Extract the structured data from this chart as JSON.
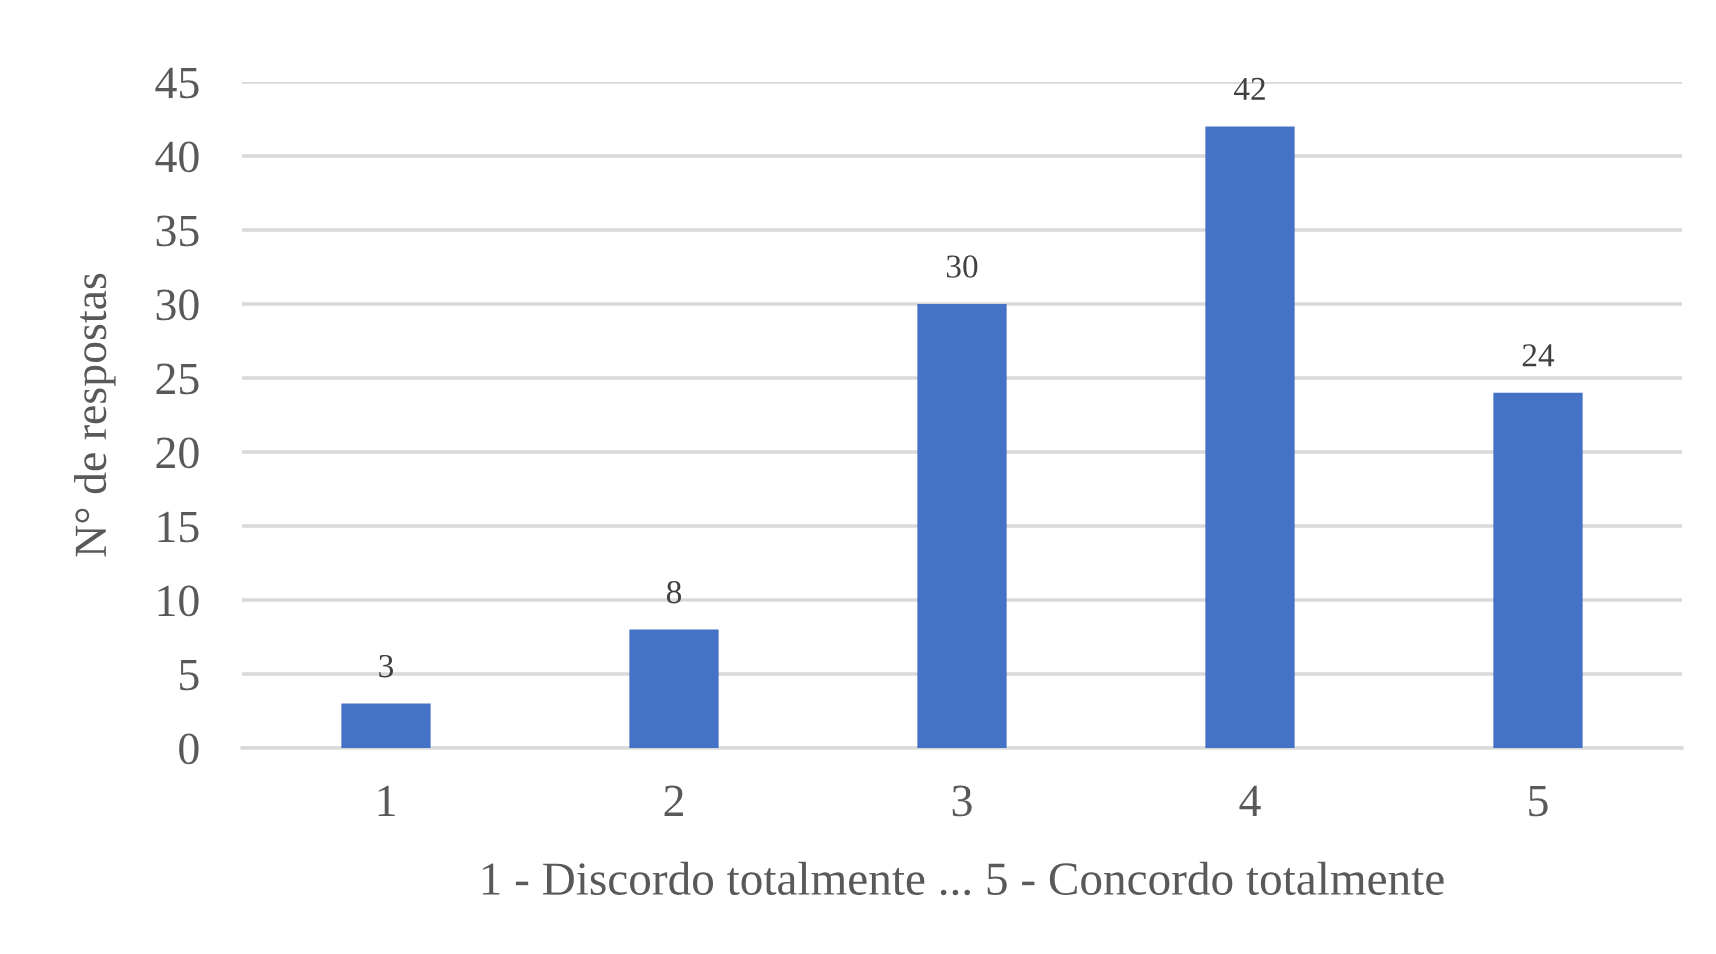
{
  "chart_data": {
    "type": "bar",
    "xlabel": "1 - Discordo totalmente ... 5 - Concordo totalmente",
    "ylabel": "N° de respostas",
    "categories": [
      "1",
      "2",
      "3",
      "4",
      "5"
    ],
    "values": [
      3,
      8,
      30,
      42,
      24
    ],
    "color": "#4472c4",
    "ylim": [
      0,
      45
    ],
    "yticks": [
      0,
      5,
      10,
      15,
      20,
      25,
      30,
      35,
      40,
      45
    ],
    "grid": "y",
    "data_labels": true
  }
}
